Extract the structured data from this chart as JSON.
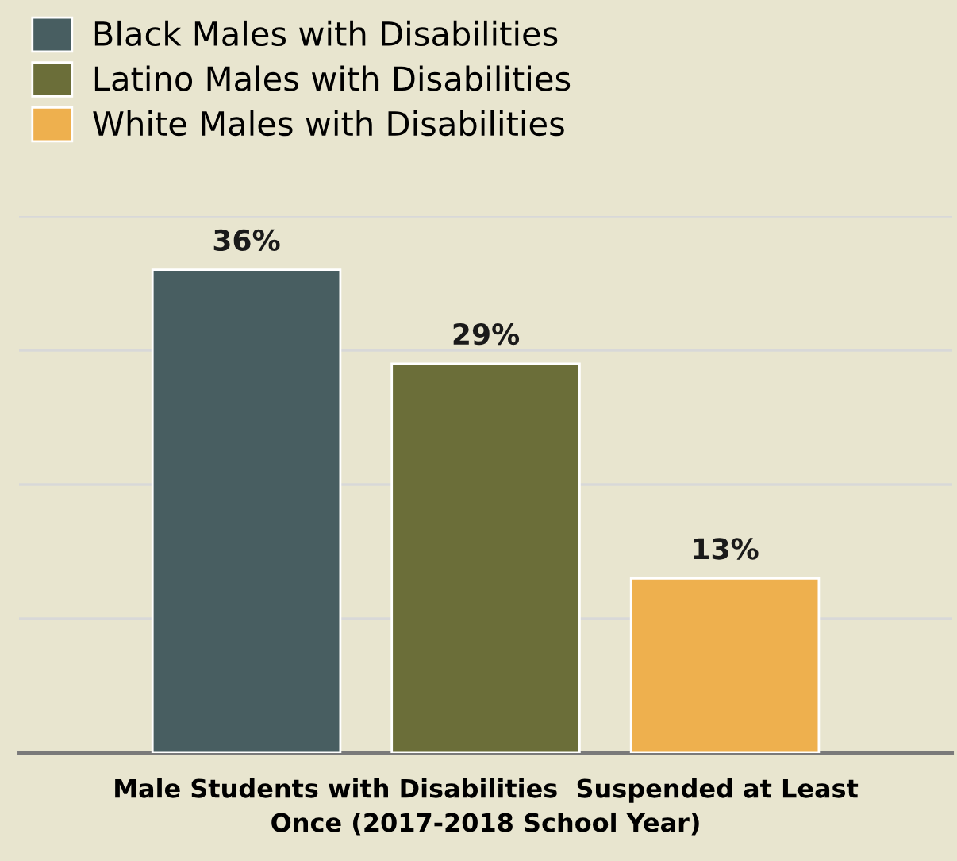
{
  "chart_data": {
    "type": "bar",
    "categories": [
      null
    ],
    "series": [
      {
        "name": "Black Males with Disabilities",
        "color": "#485e61",
        "values": [
          36
        ],
        "value_labels": [
          "36%"
        ]
      },
      {
        "name": "Latino Males with Disabilities",
        "color": "#6b6e39",
        "values": [
          29
        ],
        "value_labels": [
          "29%"
        ]
      },
      {
        "name": "White Males with Disabilities",
        "color": "#eeb04e",
        "values": [
          13
        ],
        "value_labels": [
          "13%"
        ]
      }
    ],
    "xlabel": "Male Students with Disabilities  Suspended at Least\nOnce (2017-2018 School Year)",
    "grid": "y",
    "legend": "top left"
  }
}
